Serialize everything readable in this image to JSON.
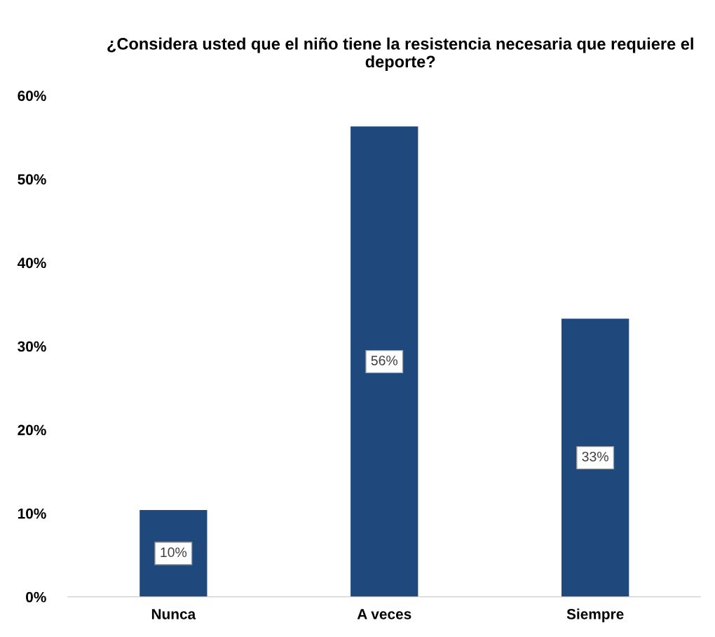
{
  "chart_data": {
    "type": "bar",
    "title": "¿Considera usted que el niño tiene la resistencia necesaria que requiere el deporte?",
    "categories": [
      "Nunca",
      "A veces",
      "Siempre"
    ],
    "values": [
      10.4,
      56.3,
      33.3
    ],
    "value_labels": [
      "10%",
      "56%",
      "33%"
    ],
    "color": "#1f497d",
    "ylim": [
      0,
      60
    ],
    "yticks": [
      {
        "value": 0,
        "label": "0%"
      },
      {
        "value": 10,
        "label": "10%"
      },
      {
        "value": 20,
        "label": "20%"
      },
      {
        "value": 30,
        "label": "30%"
      },
      {
        "value": 40,
        "label": "40%"
      },
      {
        "value": 50,
        "label": "50%"
      },
      {
        "value": 60,
        "label": "60%"
      }
    ],
    "grid": false,
    "legend": false
  }
}
